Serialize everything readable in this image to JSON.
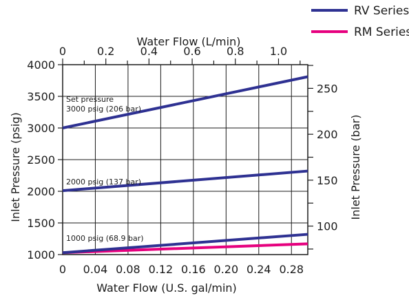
{
  "chart_data": {
    "type": "line",
    "xlabel_bottom": "Water Flow (U.S. gal/min)",
    "xlabel_top": "Water Flow (L/min)",
    "ylabel_left": "Inlet Pressure (psig)",
    "ylabel_right": "Inlet Pressure (bar)",
    "x_range": [
      0,
      0.3
    ],
    "y_range": [
      1000,
      4000
    ],
    "x_bottom_ticks": [
      "0",
      "0.04",
      "0.08",
      "0.12",
      "0.16",
      "0.20",
      "0.24",
      "0.28"
    ],
    "x_top_ticks": [
      "0",
      "0.2",
      "0.4",
      "0.6",
      "0.8",
      "1.0"
    ],
    "y_left_ticks": [
      "1000",
      "1500",
      "2000",
      "2500",
      "3000",
      "3500",
      "4000"
    ],
    "y_right_ticks": [
      "100",
      "150",
      "200",
      "250"
    ],
    "grid": true,
    "legend_position": "top-right",
    "series": [
      {
        "name": "RV Series",
        "color": "#2e3192",
        "lines": [
          {
            "x": [
              0,
              0.3
            ],
            "y": [
              3000,
              3810
            ]
          },
          {
            "x": [
              0,
              0.3
            ],
            "y": [
              2010,
              2320
            ]
          },
          {
            "x": [
              0,
              0.3
            ],
            "y": [
              1030,
              1320
            ]
          }
        ]
      },
      {
        "name": "RM Series",
        "color": "#e6007e",
        "lines": [
          {
            "x": [
              0,
              0.3
            ],
            "y": [
              1030,
              1170
            ]
          }
        ]
      }
    ],
    "annotations": [
      "Set pressure",
      "3000 psig (206 bar)",
      "2000 psig (137 bar)",
      "1000 psig (68.9 bar)"
    ]
  }
}
